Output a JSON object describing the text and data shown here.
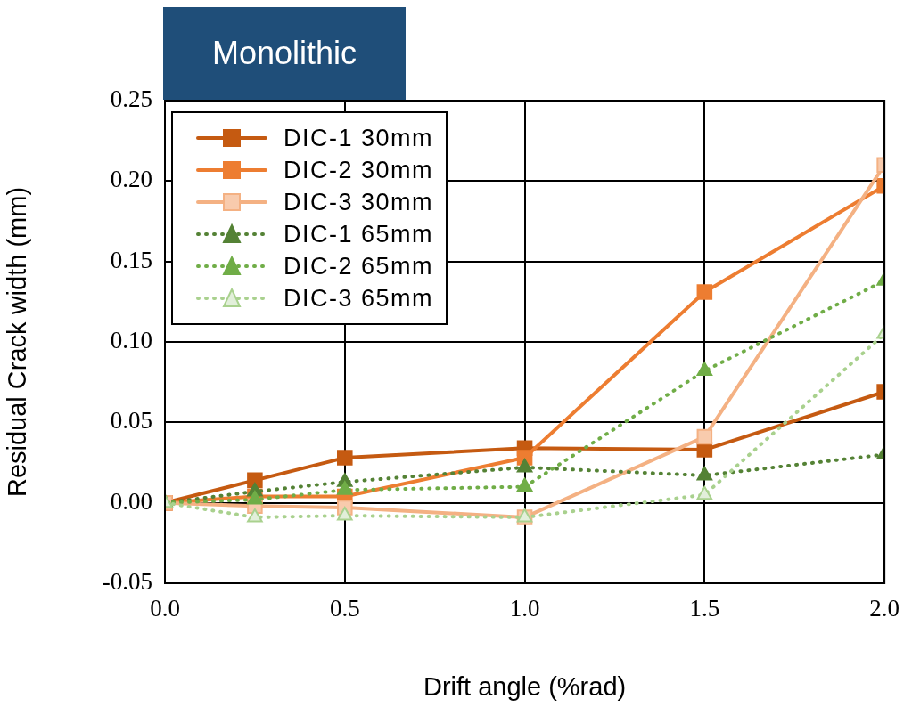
{
  "chart_data": {
    "type": "line",
    "title": "Monolithic",
    "xlabel": "Drift angle (%rad)",
    "ylabel": "Residual Crack width (mm)",
    "x": [
      0,
      0.25,
      0.5,
      1.0,
      1.5,
      2.0
    ],
    "series": [
      {
        "name": "DIC-1 30mm",
        "color": "#c55a11",
        "marker": "square",
        "line_style": "solid",
        "values": [
          0,
          0.014,
          0.028,
          0.034,
          0.033,
          0.069
        ]
      },
      {
        "name": "DIC-2 30mm",
        "color": "#ed7d31",
        "marker": "square",
        "line_style": "solid",
        "values": [
          0,
          0.004,
          0.004,
          0.028,
          0.131,
          0.197
        ]
      },
      {
        "name": "DIC-3 30mm",
        "color": "#f4b183",
        "marker": "square",
        "line_style": "solid",
        "values": [
          0,
          -0.002,
          -0.003,
          -0.009,
          0.041,
          0.21
        ]
      },
      {
        "name": "DIC-1 65mm",
        "color": "#548235",
        "marker": "triangle",
        "line_style": "dotted",
        "values": [
          0,
          0.007,
          0.013,
          0.022,
          0.017,
          0.03
        ]
      },
      {
        "name": "DIC-2 65mm",
        "color": "#70ad47",
        "marker": "triangle",
        "line_style": "dotted",
        "values": [
          0,
          0.002,
          0.008,
          0.01,
          0.082,
          0.138
        ]
      },
      {
        "name": "DIC-3 65mm",
        "color": "#a9d18e",
        "marker": "triangle",
        "line_style": "dotted",
        "values": [
          0,
          -0.009,
          -0.008,
          -0.009,
          0.005,
          0.105
        ]
      }
    ],
    "xlim": [
      0,
      2.0
    ],
    "xticks": [
      {
        "value": 0,
        "label": "0.0"
      },
      {
        "value": 0.5,
        "label": "0.5"
      },
      {
        "value": 1,
        "label": "1.0"
      },
      {
        "value": 1.5,
        "label": "1.5"
      },
      {
        "value": 2,
        "label": "2.0"
      }
    ],
    "ylim": [
      -0.05,
      0.25
    ],
    "yticks": [
      {
        "value": -0.05,
        "label": "-0.05"
      },
      {
        "value": 0,
        "label": "0.00"
      },
      {
        "value": 0.05,
        "label": "0.05"
      },
      {
        "value": 0.1,
        "label": "0.10"
      },
      {
        "value": 0.15,
        "label": "0.15"
      },
      {
        "value": 0.2,
        "label": "0.20"
      },
      {
        "value": 0.25,
        "label": "0.25"
      }
    ],
    "grid": true,
    "legend": "top left"
  }
}
